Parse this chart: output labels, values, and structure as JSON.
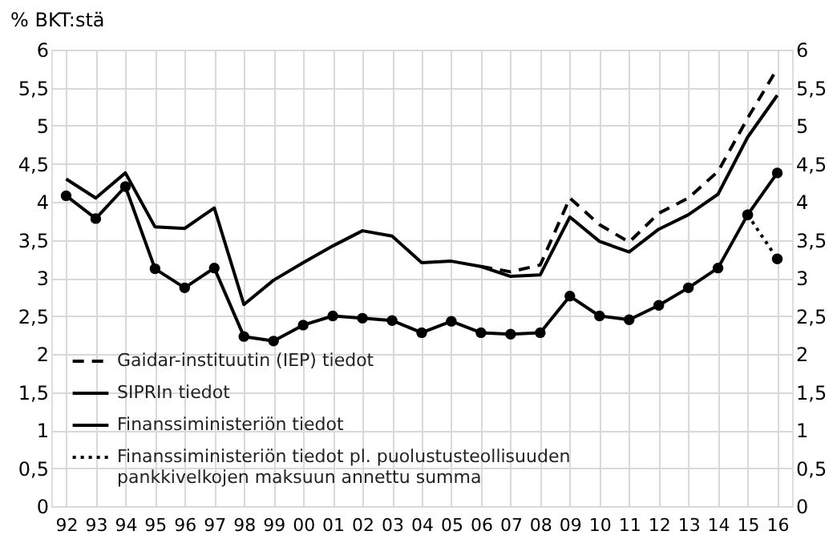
{
  "chart_data": {
    "type": "line",
    "ylabel": "% BKT:stä",
    "categories": [
      "92",
      "93",
      "94",
      "95",
      "96",
      "97",
      "98",
      "99",
      "00",
      "01",
      "02",
      "03",
      "04",
      "05",
      "06",
      "07",
      "08",
      "09",
      "10",
      "11",
      "12",
      "13",
      "14",
      "15",
      "16"
    ],
    "series": [
      {
        "name": "Gaidar-instituutin (IEP) tiedot",
        "color": "#000000",
        "line_style": "dashed",
        "marker": "none",
        "values": [
          null,
          null,
          null,
          null,
          null,
          null,
          null,
          null,
          null,
          null,
          null,
          null,
          null,
          null,
          3.15,
          3.08,
          3.17,
          4.05,
          3.7,
          3.47,
          3.85,
          4.05,
          4.4,
          5.1,
          5.75
        ]
      },
      {
        "name": "SIPRIn tiedot",
        "color": "#000000",
        "line_style": "solid",
        "marker": "none",
        "values": [
          4.3,
          4.05,
          4.38,
          3.67,
          3.65,
          3.92,
          2.65,
          2.97,
          3.2,
          3.42,
          3.62,
          3.55,
          3.2,
          3.22,
          3.15,
          3.02,
          3.04,
          3.8,
          3.48,
          3.34,
          3.64,
          3.83,
          4.1,
          4.85,
          5.4
        ]
      },
      {
        "name": "Finanssiministeriön tiedot",
        "color": "#000000",
        "line_style": "solid",
        "marker": "circle",
        "values": [
          4.08,
          3.78,
          4.2,
          3.12,
          2.87,
          3.13,
          2.23,
          2.17,
          2.38,
          2.5,
          2.47,
          2.44,
          2.28,
          2.43,
          2.28,
          2.26,
          2.28,
          2.76,
          2.5,
          2.45,
          2.64,
          2.87,
          3.13,
          3.83,
          4.38
        ]
      },
      {
        "name": "Finanssiministeriön tiedot pl. puolustusteollisuuden pankkivelkojen maksuun annettu summa",
        "color": "#000000",
        "line_style": "dotted",
        "marker": "circle",
        "values": [
          null,
          null,
          null,
          null,
          null,
          null,
          null,
          null,
          null,
          null,
          null,
          null,
          null,
          null,
          null,
          null,
          null,
          null,
          null,
          null,
          null,
          null,
          null,
          3.83,
          3.25
        ]
      }
    ],
    "ylim": [
      0,
      6
    ],
    "yticks": [
      0,
      {
        "value": 0.5,
        "label": "0,5"
      },
      1,
      {
        "value": 1.5,
        "label": "1,5"
      },
      2,
      {
        "value": 2.5,
        "label": "2,5"
      },
      3,
      {
        "value": 3.5,
        "label": "3,5"
      },
      4,
      {
        "value": 4.5,
        "label": "4,5"
      },
      5,
      {
        "value": 5.5,
        "label": "5,5"
      },
      6
    ],
    "y2lim": [
      0,
      6
    ],
    "y2ticks": [
      0,
      {
        "value": 0.5,
        "label": "0,5"
      },
      1,
      {
        "value": 1.5,
        "label": "1,5"
      },
      2,
      {
        "value": 2.5,
        "label": "2,5"
      },
      3,
      {
        "value": 3.5,
        "label": "3,5"
      },
      4,
      {
        "value": 4.5,
        "label": "4,5"
      },
      5,
      {
        "value": 5.5,
        "label": "5,5"
      },
      6
    ],
    "grid": true,
    "legend": "bottom left"
  }
}
